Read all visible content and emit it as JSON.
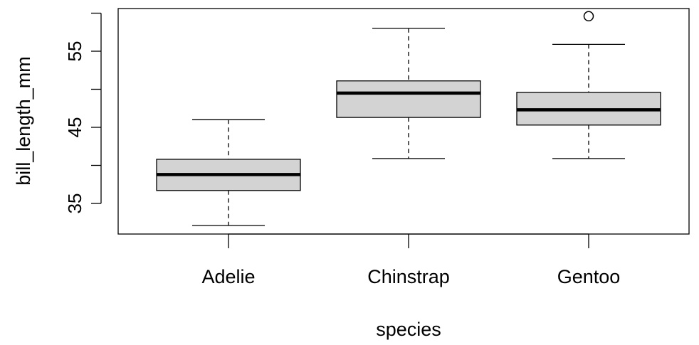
{
  "chart_data": {
    "type": "boxplot",
    "title": "",
    "xlabel": "species",
    "ylabel": "bill_length_mm",
    "ylim": [
      31,
      60
    ],
    "yticks": [
      35,
      45,
      55
    ],
    "ytick_labels": [
      "35",
      "45",
      "55"
    ],
    "grid": false,
    "box_fill": "#d3d3d3",
    "categories": [
      "Adelie",
      "Chinstrap",
      "Gentoo"
    ],
    "boxes": [
      {
        "category": "Adelie",
        "min": 32.1,
        "q1": 36.7,
        "median": 38.8,
        "q3": 40.8,
        "max": 46.0,
        "outliers": []
      },
      {
        "category": "Chinstrap",
        "min": 40.9,
        "q1": 46.3,
        "median": 49.5,
        "q3": 51.1,
        "max": 58.0,
        "outliers": []
      },
      {
        "category": "Gentoo",
        "min": 40.9,
        "q1": 45.3,
        "median": 47.3,
        "q3": 49.6,
        "max": 55.9,
        "outliers": [
          59.6
        ]
      }
    ]
  }
}
